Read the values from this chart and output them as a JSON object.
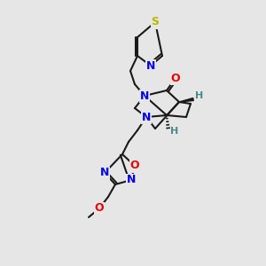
{
  "bg_color": "#e6e6e6",
  "bond_color": "#1a1a1a",
  "bond_width": 1.5,
  "atom_colors": {
    "S": "#b8b800",
    "N": "#0000ee",
    "O": "#ee0000",
    "C": "#1a1a1a",
    "H": "#4a8a8a"
  }
}
